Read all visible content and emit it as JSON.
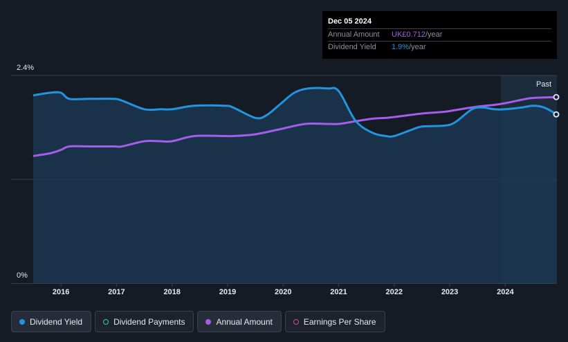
{
  "tooltip": {
    "date": "Dec 05 2024",
    "annual_label": "Annual Amount",
    "annual_value": "UK£0.712",
    "annual_unit": "/year",
    "yield_label": "Dividend Yield",
    "yield_value": "1.9%",
    "yield_unit": "/year"
  },
  "past_label": "Past",
  "legend": [
    {
      "label": "Dividend Yield",
      "color": "#2394df",
      "style": "filled",
      "active": true
    },
    {
      "label": "Dividend Payments",
      "color": "#3ec9b8",
      "style": "outline",
      "active": false
    },
    {
      "label": "Annual Amount",
      "color": "#a55eea",
      "style": "filled",
      "active": true
    },
    {
      "label": "Earnings Per Share",
      "color": "#d2499b",
      "style": "outline",
      "active": false
    }
  ],
  "colors": {
    "yield": "#2394df",
    "annual": "#a55eea",
    "area": "#1b3a55",
    "grid": "#3a414c",
    "text": "#e6e9ee"
  },
  "chart_data": {
    "type": "line",
    "y_tick_labels": [
      "2.4%",
      "0%"
    ],
    "ylim": [
      0,
      2.4
    ],
    "x_tick_labels": [
      "2016",
      "2017",
      "2018",
      "2019",
      "2020",
      "2021",
      "2022",
      "2023",
      "2024"
    ],
    "xlim": [
      2015.5,
      2024.93
    ],
    "past_start": 2023.92,
    "grid": "horizontal",
    "series": [
      {
        "name": "Dividend Yield",
        "unit": "%",
        "x": [
          2015.5,
          2015.8,
          2016.0,
          2016.15,
          2016.5,
          2016.95,
          2017.1,
          2017.5,
          2017.8,
          2018.0,
          2018.4,
          2018.95,
          2019.1,
          2019.5,
          2019.7,
          2019.95,
          2020.2,
          2020.45,
          2020.8,
          2021.0,
          2021.3,
          2021.6,
          2021.85,
          2022.0,
          2022.3,
          2022.5,
          2022.9,
          2023.1,
          2023.4,
          2023.6,
          2023.8,
          2024.0,
          2024.3,
          2024.5,
          2024.7,
          2024.93
        ],
        "y": [
          2.17,
          2.2,
          2.2,
          2.13,
          2.13,
          2.13,
          2.11,
          2.01,
          2.01,
          2.01,
          2.05,
          2.05,
          2.03,
          1.91,
          1.94,
          2.07,
          2.2,
          2.25,
          2.25,
          2.22,
          1.88,
          1.74,
          1.7,
          1.7,
          1.77,
          1.81,
          1.82,
          1.86,
          2.01,
          2.03,
          2.01,
          2.01,
          2.03,
          2.05,
          2.03,
          1.95
        ]
      },
      {
        "name": "Annual Amount",
        "x": [
          2015.5,
          2015.8,
          2016.0,
          2016.15,
          2016.5,
          2016.95,
          2017.1,
          2017.5,
          2017.8,
          2018.0,
          2018.4,
          2018.95,
          2019.1,
          2019.5,
          2019.95,
          2020.4,
          2020.8,
          2021.0,
          2021.3,
          2021.6,
          2021.85,
          2022.0,
          2022.5,
          2022.9,
          2023.1,
          2023.5,
          2023.8,
          2024.0,
          2024.3,
          2024.5,
          2024.93
        ],
        "y": [
          1.47,
          1.5,
          1.54,
          1.58,
          1.58,
          1.58,
          1.58,
          1.64,
          1.64,
          1.64,
          1.7,
          1.7,
          1.7,
          1.72,
          1.78,
          1.84,
          1.84,
          1.84,
          1.87,
          1.9,
          1.91,
          1.92,
          1.96,
          1.98,
          2.0,
          2.04,
          2.06,
          2.08,
          2.12,
          2.14,
          2.15
        ]
      }
    ]
  }
}
